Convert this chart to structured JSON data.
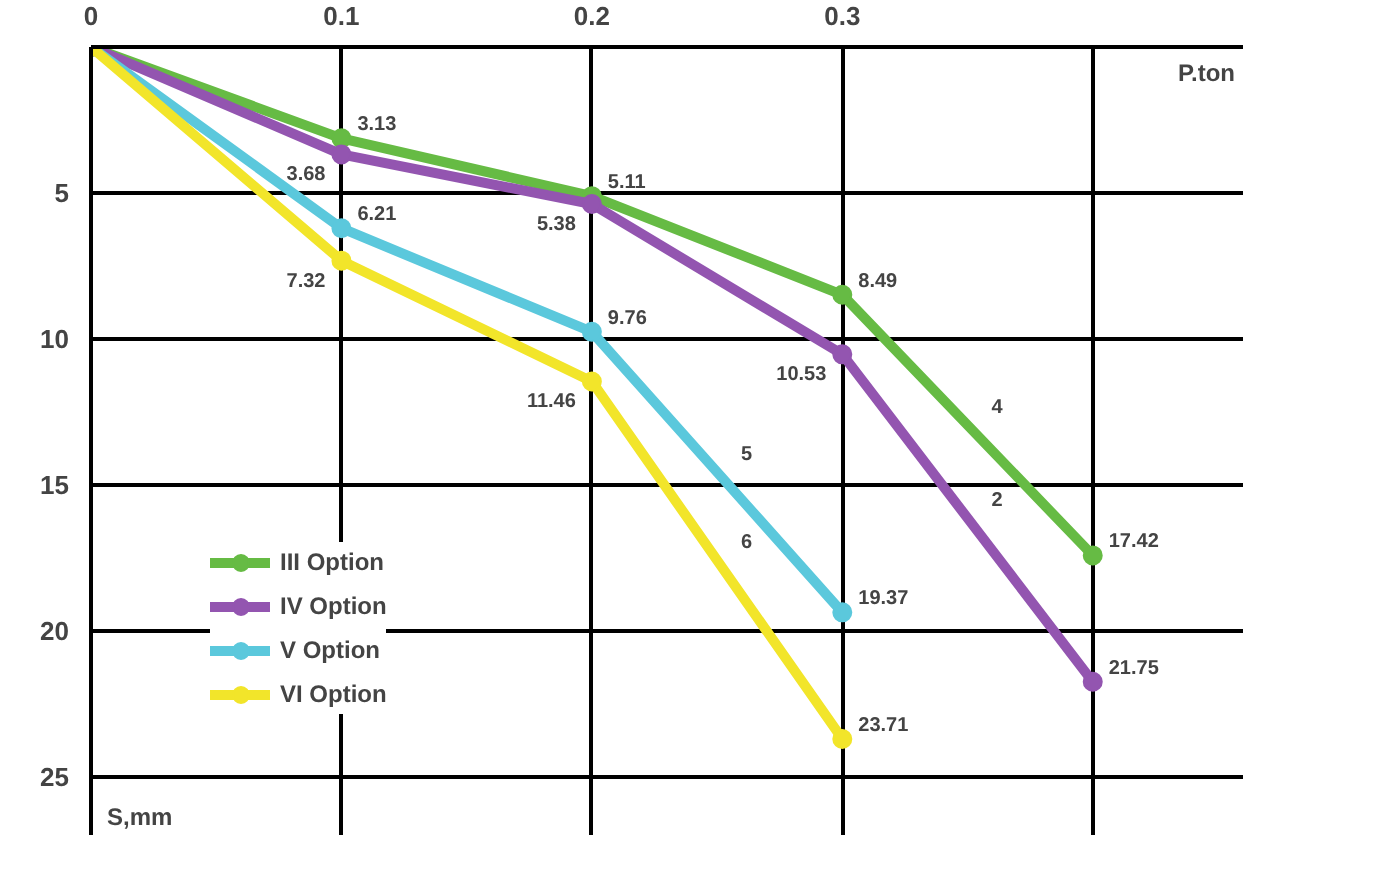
{
  "chart_data": {
    "type": "line",
    "xlabel": "P.ton",
    "ylabel": "S,mm",
    "x": [
      0,
      0.1,
      0.2,
      0.3,
      0.4
    ],
    "series": [
      {
        "name": "III Option",
        "color": "#66bb44",
        "values": [
          0,
          3.13,
          5.11,
          8.49,
          17.42
        ],
        "value_labels": [
          null,
          "3.13",
          "5.11",
          "8.49",
          "17.42"
        ]
      },
      {
        "name": "IV Option",
        "color": "#9355b0",
        "values": [
          0,
          3.68,
          5.38,
          10.53,
          21.75
        ],
        "value_labels": [
          null,
          "3.68",
          "5.38",
          "10.53",
          "21.75"
        ]
      },
      {
        "name": "V Option",
        "color": "#5bc8dc",
        "values": [
          0,
          6.21,
          9.76,
          19.37,
          null
        ],
        "value_labels": [
          null,
          "6.21",
          "9.76",
          "19.37",
          null
        ]
      },
      {
        "name": "VI Option",
        "color": "#f2e52a",
        "values": [
          0,
          7.32,
          11.46,
          23.71,
          null
        ],
        "value_labels": [
          null,
          "7.32",
          "11.46",
          "23.71",
          null
        ]
      }
    ],
    "annotations": [
      "4",
      "2",
      "5",
      "6"
    ],
    "xlim": [
      0,
      0.46
    ],
    "ylim": [
      27,
      0
    ],
    "xticks": [
      0,
      0.1,
      0.2,
      0.3,
      {
        "value": 0.4,
        "label": null
      }
    ],
    "yticks": [
      {
        "value": 0,
        "label": null
      },
      5,
      10,
      15,
      20,
      25
    ],
    "grid": true,
    "legend": "bottom left",
    "marker": "circle",
    "line_style": "solid"
  }
}
